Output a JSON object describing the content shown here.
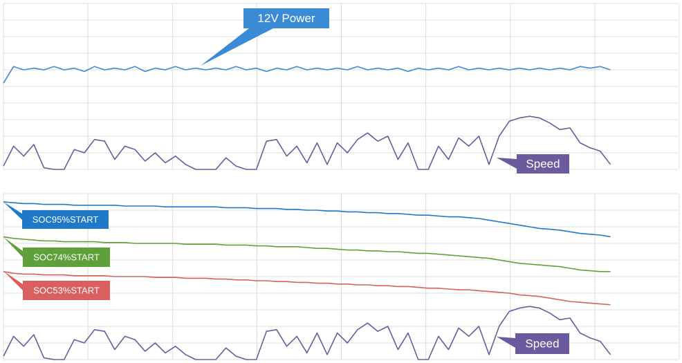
{
  "chart_data": [
    {
      "type": "line",
      "grid": true,
      "xlim": [
        0,
        100
      ],
      "ylim": [
        0,
        100
      ],
      "x": [
        0,
        1.5,
        3,
        4.5,
        6,
        7.5,
        9,
        10.5,
        12,
        13.5,
        15,
        16.5,
        18,
        19.5,
        21,
        22.5,
        24,
        25.5,
        27,
        28.5,
        30,
        31.5,
        33,
        34.5,
        36,
        37.5,
        39,
        40.5,
        42,
        43.5,
        45,
        46.5,
        48,
        49.5,
        51,
        52.5,
        54,
        55.5,
        57,
        58.5,
        60,
        61.5,
        63,
        64.5,
        66,
        67.5,
        69,
        70.5,
        72,
        73.5,
        75,
        76.5,
        78,
        79.5,
        81,
        82.5,
        84,
        85.5,
        87,
        88.5,
        90
      ],
      "series": [
        {
          "name": "12V Power",
          "color": "#3b8ad6",
          "values": [
            52,
            62,
            60,
            61,
            60,
            62,
            60,
            61,
            59,
            62,
            60,
            61,
            60,
            62,
            59,
            61,
            60,
            62,
            60,
            61,
            60,
            61,
            60,
            62,
            60,
            61,
            59,
            61,
            60,
            62,
            60,
            61,
            60,
            61,
            60,
            62,
            60,
            61,
            60,
            61,
            59,
            61,
            60,
            61,
            60,
            62,
            60,
            61,
            60,
            61,
            60,
            61,
            60,
            61,
            60,
            61,
            60,
            62,
            61,
            62,
            60
          ]
        },
        {
          "name": "Speed",
          "color": "#6b5b9e",
          "values": [
            2,
            14,
            8,
            15,
            1,
            0,
            0,
            12,
            10,
            18,
            17,
            6,
            14,
            12,
            5,
            10,
            4,
            8,
            3,
            0,
            0,
            0,
            7,
            2,
            0,
            0,
            17,
            18,
            8,
            14,
            4,
            16,
            3,
            16,
            10,
            18,
            22,
            17,
            20,
            6,
            16,
            0,
            0,
            14,
            6,
            19,
            14,
            20,
            3,
            20,
            29,
            31,
            32,
            31,
            28,
            24,
            25,
            16,
            13,
            11,
            3
          ]
        }
      ]
    },
    {
      "type": "line",
      "grid": true,
      "xlim": [
        0,
        100
      ],
      "ylim": [
        0,
        100
      ],
      "x": [
        0,
        1.5,
        3,
        4.5,
        6,
        7.5,
        9,
        10.5,
        12,
        13.5,
        15,
        16.5,
        18,
        19.5,
        21,
        22.5,
        24,
        25.5,
        27,
        28.5,
        30,
        31.5,
        33,
        34.5,
        36,
        37.5,
        39,
        40.5,
        42,
        43.5,
        45,
        46.5,
        48,
        49.5,
        51,
        52.5,
        54,
        55.5,
        57,
        58.5,
        60,
        61.5,
        63,
        64.5,
        66,
        67.5,
        69,
        70.5,
        72,
        73.5,
        75,
        76.5,
        78,
        79.5,
        81,
        82.5,
        84,
        85.5,
        87,
        88.5,
        90
      ],
      "series": [
        {
          "name": "SOC95%START",
          "color": "#1f78c8",
          "values": [
            95,
            94.5,
            94,
            94,
            93.5,
            93.5,
            93.5,
            93,
            93,
            93,
            93,
            93,
            92.5,
            92.5,
            92.5,
            92.5,
            92,
            92,
            92,
            92,
            92,
            92,
            91.5,
            91.5,
            91.5,
            91,
            91,
            91,
            90.5,
            90.5,
            90,
            90,
            89.5,
            89.5,
            89,
            89,
            88.5,
            88.5,
            88,
            88,
            87.5,
            87,
            87,
            86.5,
            86,
            86,
            85.5,
            85,
            84,
            83,
            82,
            81,
            80,
            79,
            78.5,
            78,
            77,
            76,
            75.5,
            75,
            74
          ]
        },
        {
          "name": "SOC74%START",
          "color": "#5fa03a",
          "values": [
            74,
            73,
            72.5,
            72,
            71.5,
            71.5,
            71,
            71,
            71,
            71,
            70.5,
            70.5,
            70.5,
            70,
            70,
            70,
            70,
            70,
            69.5,
            69.5,
            69.5,
            69.5,
            69,
            69,
            69,
            68.5,
            68.5,
            68,
            68,
            68,
            67.5,
            67,
            67,
            66.5,
            66,
            66,
            65.5,
            65.5,
            65,
            65,
            64.5,
            64,
            64,
            63.5,
            63,
            62.5,
            62,
            61.5,
            61,
            60,
            59,
            58,
            57.5,
            57,
            56.5,
            56,
            55,
            54,
            53.5,
            53,
            53
          ]
        },
        {
          "name": "SOC53%START",
          "color": "#d9605f",
          "values": [
            53,
            52,
            51.5,
            51.5,
            51,
            51,
            51,
            50.5,
            50.5,
            50.5,
            50.5,
            50,
            50,
            50,
            50,
            49.5,
            49.5,
            49.5,
            49,
            49,
            49,
            48.5,
            48.5,
            48,
            48,
            47.5,
            47.5,
            47,
            47,
            46.5,
            46.5,
            46,
            46,
            45.5,
            45.5,
            45,
            45,
            44.5,
            44.5,
            44,
            44,
            43.5,
            43,
            43,
            42.5,
            42,
            42,
            41.5,
            41,
            40.5,
            40,
            39,
            38.5,
            38,
            37,
            36,
            35,
            34.5,
            34,
            33.5,
            33
          ]
        },
        {
          "name": "Speed",
          "color": "#6b5b9e",
          "values": [
            2,
            14,
            8,
            15,
            1,
            0,
            0,
            12,
            10,
            18,
            17,
            6,
            14,
            12,
            5,
            10,
            4,
            8,
            3,
            0,
            0,
            0,
            7,
            2,
            0,
            0,
            17,
            18,
            8,
            14,
            4,
            16,
            3,
            16,
            10,
            18,
            22,
            17,
            20,
            6,
            16,
            0,
            0,
            14,
            6,
            19,
            14,
            20,
            3,
            20,
            29,
            31,
            32,
            31,
            28,
            24,
            25,
            16,
            13,
            11,
            3
          ]
        }
      ]
    }
  ]
}
